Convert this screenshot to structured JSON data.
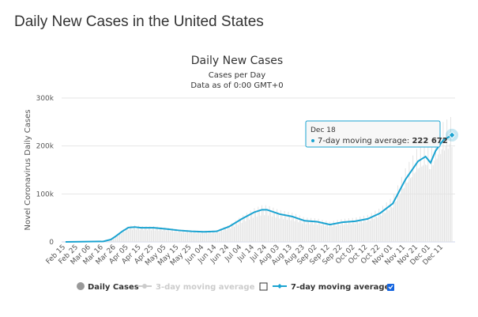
{
  "page_title": "Daily New Cases in the United States",
  "chart_data": {
    "type": "line",
    "title": "Daily New Cases",
    "subtitle": "Cases per Day",
    "subtitle2": "Data as of 0:00 GMT+0",
    "ylabel": "Novel Coronavirus Daily Cases",
    "ylim": [
      0,
      300000
    ],
    "yticks": [
      {
        "v": 0,
        "label": "0"
      },
      {
        "v": 100000,
        "label": "100k"
      },
      {
        "v": 200000,
        "label": "200k"
      },
      {
        "v": 300000,
        "label": "300k"
      }
    ],
    "xticks": [
      "Feb 15",
      "Feb 25",
      "Mar 06",
      "Mar 16",
      "Mar 26",
      "Apr 05",
      "Apr 15",
      "Apr 25",
      "May 05",
      "May 15",
      "May 25",
      "Jun 04",
      "Jun 14",
      "Jun 24",
      "Jul 04",
      "Jul 14",
      "Jul 24",
      "Aug 03",
      "Aug 13",
      "Aug 23",
      "Sep 02",
      "Sep 12",
      "Sep 22",
      "Oct 02",
      "Oct 12",
      "Oct 22",
      "Nov 01",
      "Nov 11",
      "Nov 21",
      "Dec 01",
      "Dec 11"
    ],
    "series": [
      {
        "name": "7-day moving average",
        "color": "#1aa3d1",
        "days_since_feb15": [
          0,
          30,
          36,
          40,
          45,
          50,
          55,
          60,
          70,
          80,
          90,
          100,
          110,
          120,
          130,
          140,
          150,
          156,
          160,
          170,
          180,
          190,
          200,
          210,
          220,
          230,
          240,
          250,
          260,
          270,
          280,
          286,
          290,
          294,
          300,
          307
        ],
        "values": [
          0,
          1000,
          5000,
          12000,
          22000,
          30000,
          31000,
          29500,
          29500,
          27000,
          24000,
          22000,
          21000,
          22000,
          32000,
          48000,
          62000,
          67000,
          67000,
          58000,
          53000,
          44000,
          42000,
          36000,
          41000,
          43000,
          48000,
          60000,
          80000,
          130000,
          168000,
          178000,
          165000,
          190000,
          212000,
          222672
        ]
      }
    ],
    "legend": [
      {
        "label": "Daily Cases",
        "color": "#999999",
        "enabled": true
      },
      {
        "label": "3-day moving average",
        "color": "#cccccc",
        "enabled": false
      },
      {
        "label": "7-day moving average",
        "color": "#1aa3d1",
        "enabled": true
      }
    ],
    "tooltip": {
      "date": "Dec 18",
      "label": "7-day moving average:",
      "value": "222 672"
    }
  }
}
